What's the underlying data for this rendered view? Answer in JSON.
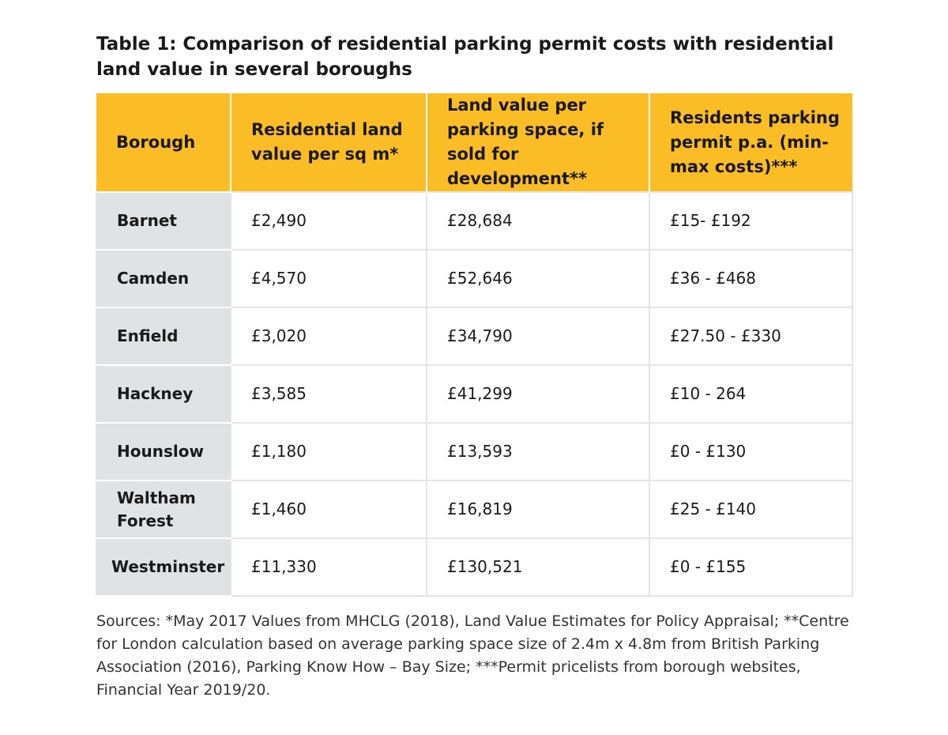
{
  "title": "Table 1: Comparison of residential parking permit costs with residential land value in several boroughs",
  "table": {
    "headers": [
      "Borough",
      "Residential land value per sq m*",
      "Land value per parking space, if sold for development**",
      "Residents parking permit p.a. (min-max costs)***"
    ],
    "rows": [
      {
        "borough": "Barnet",
        "land_value_sqm": "£2,490",
        "land_value_space": "£28,684",
        "permit": "£15- £192"
      },
      {
        "borough": "Camden",
        "land_value_sqm": "£4,570",
        "land_value_space": "£52,646",
        "permit": "£36 - £468"
      },
      {
        "borough": "Enfield",
        "land_value_sqm": "£3,020",
        "land_value_space": "£34,790",
        "permit": "£27.50 - £330"
      },
      {
        "borough": "Hackney",
        "land_value_sqm": "£3,585",
        "land_value_space": "£41,299",
        "permit": "£10 - 264"
      },
      {
        "borough": "Hounslow",
        "land_value_sqm": "£1,180",
        "land_value_space": "£13,593",
        "permit": "£0 - £130"
      },
      {
        "borough": "Waltham Forest",
        "land_value_sqm": "£1,460",
        "land_value_space": "£16,819",
        "permit": "£25 - £140"
      },
      {
        "borough": "Westminster",
        "land_value_sqm": "£11,330",
        "land_value_space": "£130,521",
        "permit": "£0 - £155"
      }
    ]
  },
  "sources": "Sources: *May 2017 Values from MHCLG (2018), Land Value Estimates for Policy Appraisal; **Centre for London calculation based on average parking space size of 2.4m x 4.8m from British Parking Association (2016), Parking Know How – Bay Size; ***Permit pricelists from borough websites, Financial Year 2019/20.",
  "colors": {
    "header_bg": "#fbbd25",
    "borough_bg": "#dfe3e5",
    "border": "#e3e6e8"
  }
}
